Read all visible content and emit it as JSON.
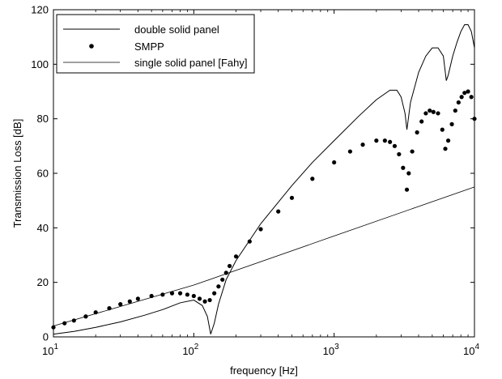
{
  "chart_data": {
    "type": "line",
    "xlabel": "frequency [Hz]",
    "ylabel": "Transmission Loss [dB]",
    "xscale": "log",
    "xlim": [
      10,
      10000
    ],
    "ylim": [
      0,
      120
    ],
    "xticks": [
      10,
      100,
      1000,
      10000
    ],
    "xtick_labels": [
      {
        "base": "10",
        "exp": "1"
      },
      {
        "base": "10",
        "exp": "2"
      },
      {
        "base": "10",
        "exp": "3"
      },
      {
        "base": "10",
        "exp": "4"
      }
    ],
    "yticks": [
      0,
      20,
      40,
      60,
      80,
      100,
      120
    ],
    "ytick_labels": [
      "0",
      "20",
      "40",
      "60",
      "80",
      "100",
      "120"
    ],
    "grid": false,
    "legend_position": "top-left",
    "series": [
      {
        "name": "double solid panel",
        "style": "line",
        "x": [
          10,
          14,
          20,
          30,
          45,
          60,
          80,
          100,
          115,
          125,
          132,
          140,
          150,
          170,
          200,
          300,
          500,
          700,
          1000,
          1500,
          2000,
          2500,
          2800,
          3000,
          3200,
          3300,
          3500,
          4000,
          4500,
          5000,
          5500,
          6000,
          6300,
          6500,
          7000,
          7500,
          8000,
          8500,
          9000,
          9500,
          10000
        ],
        "y": [
          1,
          2,
          3.5,
          5.5,
          8,
          10,
          12.5,
          13.5,
          11.5,
          7.5,
          1,
          5,
          12,
          21,
          28,
          41.5,
          55.5,
          64,
          72,
          81,
          87,
          90.5,
          90.5,
          88,
          82,
          76,
          86,
          97,
          103,
          106,
          106,
          103,
          94,
          96,
          103,
          108,
          112,
          114.5,
          114.5,
          112,
          106
        ]
      },
      {
        "name": "SMPP",
        "style": "markers",
        "x": [
          10,
          12,
          14,
          17,
          20,
          25,
          30,
          35,
          40,
          50,
          60,
          70,
          80,
          90,
          100,
          110,
          120,
          130,
          140,
          150,
          160,
          170,
          180,
          200,
          250,
          300,
          400,
          500,
          700,
          1000,
          1300,
          1600,
          2000,
          2300,
          2500,
          2700,
          2900,
          3100,
          3300,
          3400,
          3600,
          3900,
          4200,
          4500,
          4800,
          5100,
          5500,
          5900,
          6200,
          6500,
          6900,
          7300,
          7700,
          8100,
          8500,
          9000,
          9500,
          10000
        ],
        "y": [
          3.5,
          5,
          6,
          7.5,
          9,
          10.5,
          12,
          13,
          14,
          15,
          15.5,
          16,
          16,
          15.5,
          15,
          14,
          13,
          13.5,
          16,
          18.5,
          21,
          23.5,
          26,
          29.5,
          35,
          39.5,
          46,
          51,
          58,
          64,
          68,
          70.5,
          72,
          72,
          71.5,
          70,
          67,
          62,
          54,
          60,
          68,
          75,
          79,
          82,
          83,
          82.5,
          82,
          76,
          69,
          72,
          78,
          83,
          86,
          88,
          89.5,
          90,
          88,
          80
        ]
      },
      {
        "name": "single solid panel [Fahy]",
        "style": "line",
        "x": [
          10,
          100,
          1000,
          10000
        ],
        "y": [
          4,
          19,
          37,
          55
        ]
      }
    ]
  }
}
